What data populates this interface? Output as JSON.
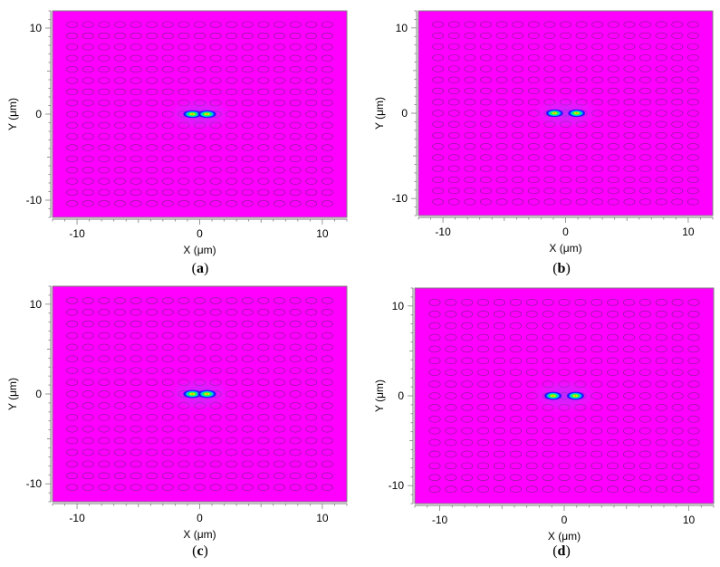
{
  "chart_data": [
    {
      "type": "heatmap",
      "caption_letter": "a",
      "xlabel": "X (μm)",
      "ylabel": "Y (μm)",
      "xlim": [
        -12,
        12
      ],
      "ylim": [
        -12,
        12
      ],
      "xticks": [
        -10,
        0,
        10
      ],
      "yticks": [
        -10,
        0,
        10
      ],
      "background_color": "#ff00ff",
      "lattice": {
        "nx": 17,
        "ny": 17,
        "pitch": 1.3,
        "hole_rx": 0.45,
        "hole_ry": 0.35
      },
      "lobes": [
        {
          "x": -0.6,
          "y": 0.0
        },
        {
          "x": 0.6,
          "y": 0.0
        }
      ],
      "lobe_size": {
        "rx": 0.75,
        "ry": 0.45
      }
    },
    {
      "type": "heatmap",
      "caption_letter": "b",
      "xlabel": "X (μm)",
      "ylabel": "Y (μm)",
      "xlim": [
        -12,
        12
      ],
      "ylim": [
        -12,
        12
      ],
      "xticks": [
        -10,
        0,
        10
      ],
      "yticks": [
        -10,
        0,
        10
      ],
      "background_color": "#ff00ff",
      "lattice": {
        "nx": 17,
        "ny": 17,
        "pitch": 1.3,
        "hole_rx": 0.45,
        "hole_ry": 0.35
      },
      "lobes": [
        {
          "x": -0.9,
          "y": 0.0
        },
        {
          "x": 0.9,
          "y": 0.0
        }
      ],
      "lobe_size": {
        "rx": 0.7,
        "ry": 0.45
      }
    },
    {
      "type": "heatmap",
      "caption_letter": "c",
      "xlabel": "X (μm)",
      "ylabel": "Y (μm)",
      "xlim": [
        -12,
        12
      ],
      "ylim": [
        -12,
        12
      ],
      "xticks": [
        -10,
        0,
        10
      ],
      "yticks": [
        -10,
        0,
        10
      ],
      "background_color": "#ff00ff",
      "lattice": {
        "nx": 17,
        "ny": 17,
        "pitch": 1.3,
        "hole_rx": 0.45,
        "hole_ry": 0.35
      },
      "lobes": [
        {
          "x": -0.6,
          "y": 0.0
        },
        {
          "x": 0.6,
          "y": 0.0
        }
      ],
      "lobe_size": {
        "rx": 0.75,
        "ry": 0.45
      }
    },
    {
      "type": "heatmap",
      "caption_letter": "d",
      "xlabel": "X (μm)",
      "ylabel": "Y (μm)",
      "xlim": [
        -12,
        12
      ],
      "ylim": [
        -12,
        12
      ],
      "xticks": [
        -10,
        0,
        10
      ],
      "yticks": [
        -10,
        0,
        10
      ],
      "background_color": "#ff00ff",
      "lattice": {
        "nx": 17,
        "ny": 17,
        "pitch": 1.3,
        "hole_rx": 0.45,
        "hole_ry": 0.35
      },
      "lobes": [
        {
          "x": -0.9,
          "y": 0.0
        },
        {
          "x": 0.9,
          "y": 0.0
        }
      ],
      "lobe_size": {
        "rx": 0.7,
        "ry": 0.45
      }
    }
  ]
}
